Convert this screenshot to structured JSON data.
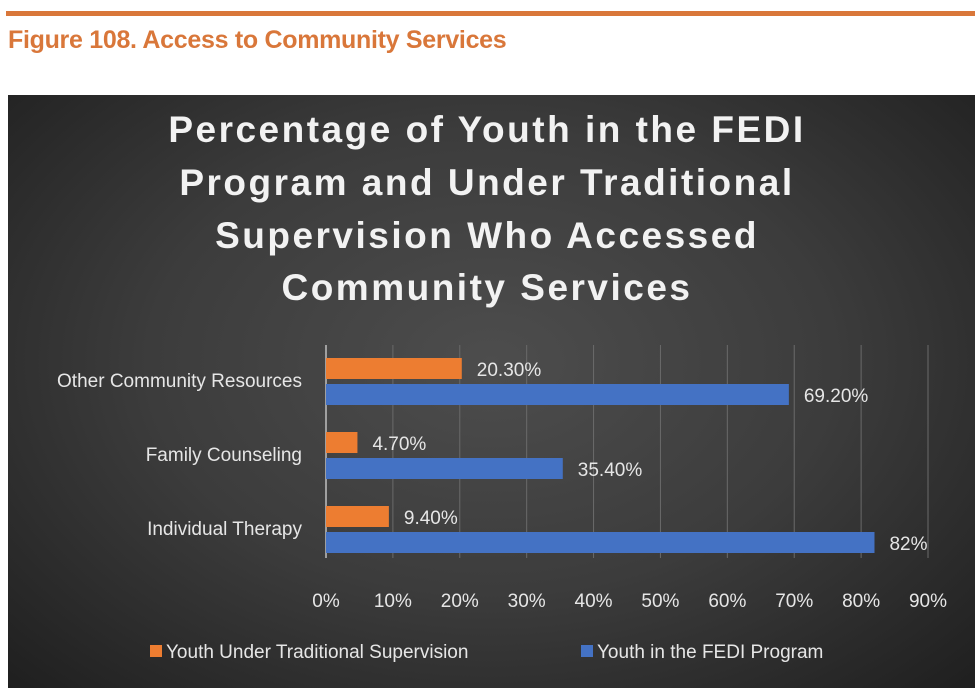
{
  "figure": {
    "title": "Figure 108. Access to Community Services",
    "accent_color": "#d9773a"
  },
  "chart_data": {
    "type": "bar",
    "orientation": "horizontal",
    "title_lines": [
      "Percentage of Youth in the FEDI",
      "Program and Under Traditional",
      "Supervision Who Accessed",
      "Community Services"
    ],
    "categories": [
      "Other Community Resources",
      "Family Counseling",
      "Individual Therapy"
    ],
    "series": [
      {
        "name": "Youth Under Traditional Supervision",
        "color": "#ed7d31",
        "values": [
          20.3,
          4.7,
          9.4
        ],
        "labels": [
          "20.30%",
          "4.70%",
          "9.40%"
        ]
      },
      {
        "name": "Youth in the FEDI Program",
        "color": "#4472c4",
        "values": [
          69.2,
          35.4,
          82
        ],
        "labels": [
          "69.20%",
          "35.40%",
          "82%"
        ]
      }
    ],
    "xlim": [
      0,
      90
    ],
    "xticks": [
      "0%",
      "10%",
      "20%",
      "30%",
      "40%",
      "50%",
      "60%",
      "70%",
      "80%",
      "90%"
    ],
    "grid": true,
    "legend": "bottom",
    "background": "dark"
  }
}
